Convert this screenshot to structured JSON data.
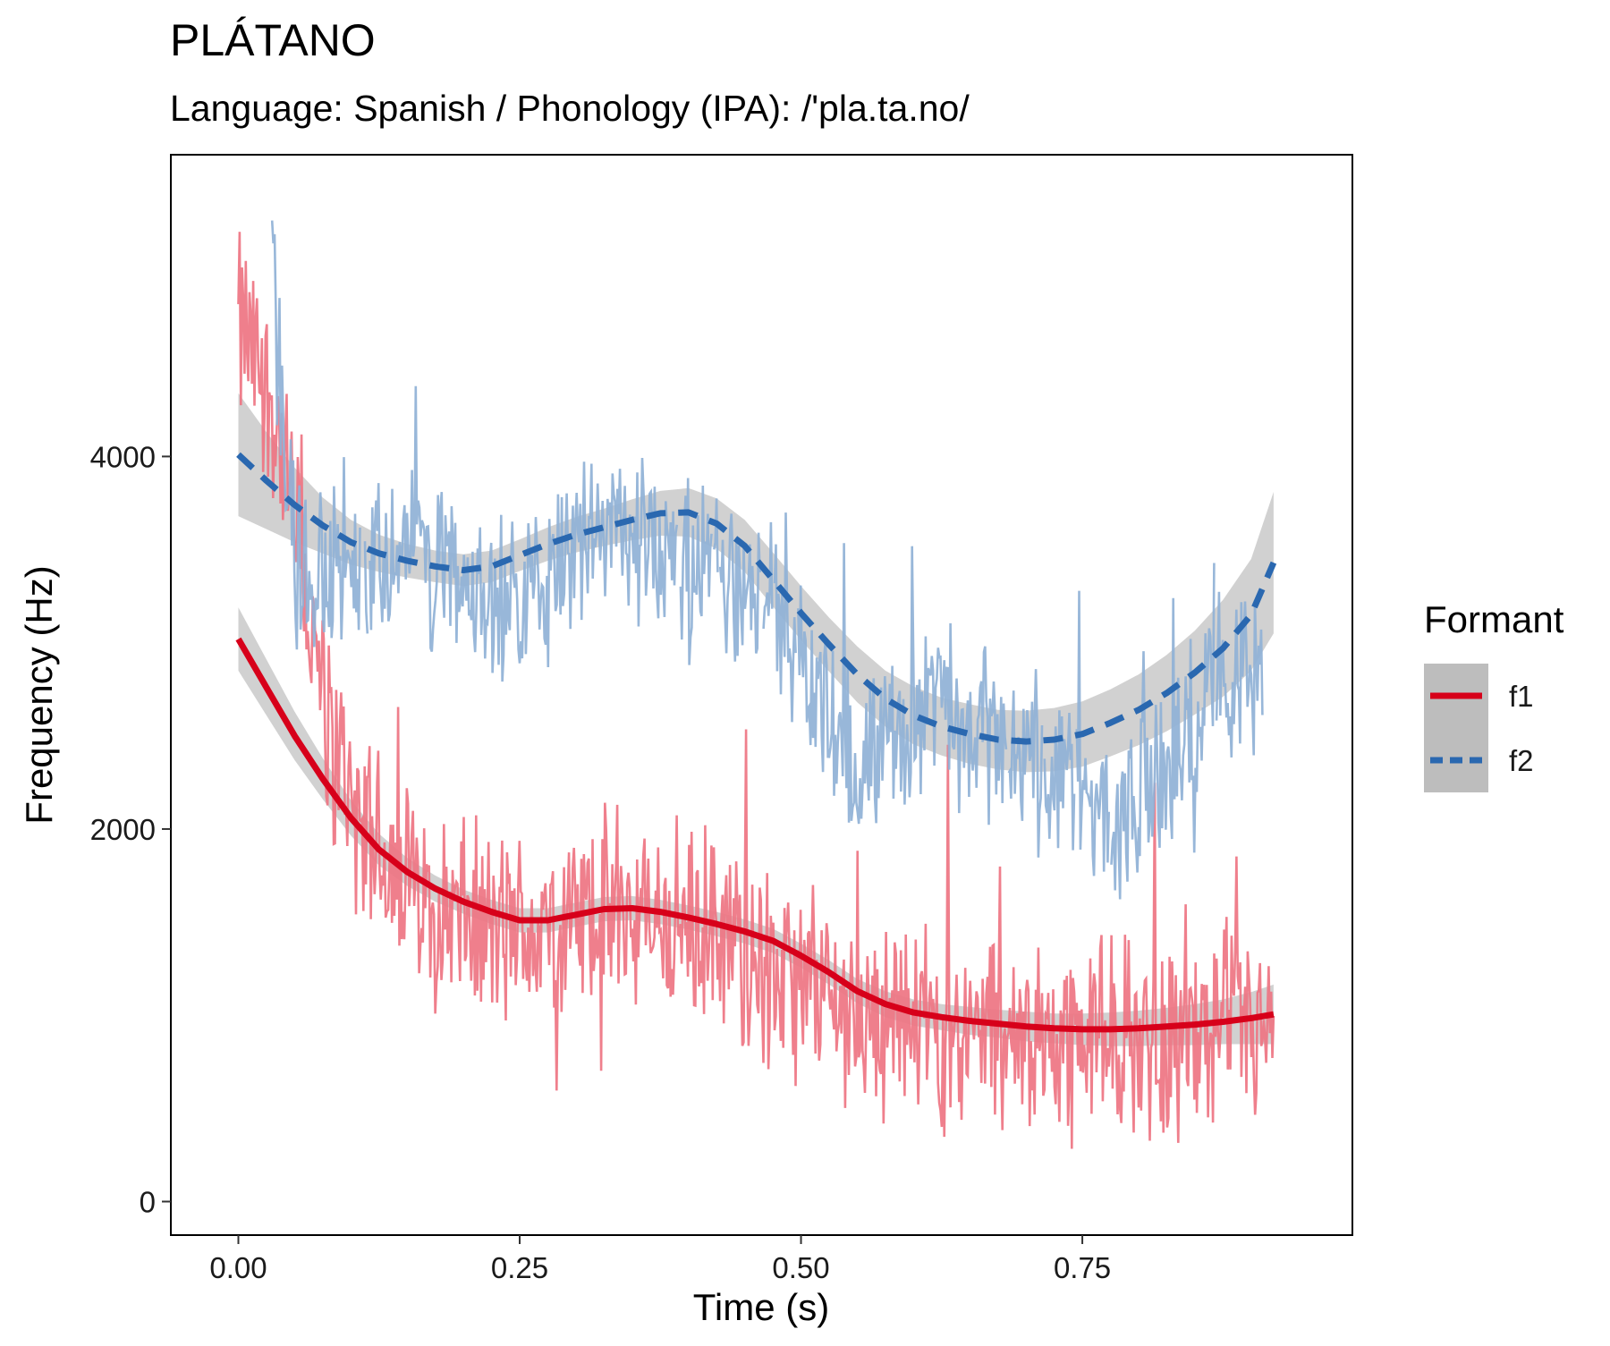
{
  "chart_data": {
    "type": "line",
    "title": "PLÁTANO",
    "subtitle": "Language: Spanish / Phonology (IPA): /'pla.ta.no/",
    "xlabel": "Time (s)",
    "ylabel": "Frequency (Hz)",
    "xlim": [
      -0.06,
      0.99
    ],
    "ylim": [
      -180,
      5620
    ],
    "x_ticks": [
      0.0,
      0.25,
      0.5,
      0.75
    ],
    "x_tick_labels": [
      "0.00",
      "0.25",
      "0.50",
      "0.75"
    ],
    "y_ticks": [
      0,
      2000,
      4000
    ],
    "y_tick_labels": [
      "0",
      "2000",
      "4000"
    ],
    "grid": false,
    "legend": {
      "title": "Formant",
      "placement": "right",
      "entries": [
        {
          "label": "f1",
          "color": "#d7001a",
          "dash": "solid"
        },
        {
          "label": "f2",
          "color": "#2a68b0",
          "dash": "dashed"
        }
      ]
    },
    "raw_colors": {
      "f1": "#ee7482",
      "f2": "#8fb1d6"
    },
    "ribbon_color": "#bdbdbd",
    "raw_series": [
      {
        "name": "f1",
        "anchors_x": [
          0.0,
          0.03,
          0.05,
          0.08,
          0.12,
          0.17,
          0.22,
          0.26,
          0.33,
          0.38,
          0.44,
          0.48,
          0.56,
          0.63,
          0.7,
          0.78,
          0.85,
          0.92
        ],
        "anchors_y": [
          4700,
          4300,
          3600,
          2500,
          1900,
          1600,
          1450,
          1450,
          1550,
          1500,
          1400,
          1200,
          1000,
          920,
          900,
          880,
          880,
          900
        ],
        "noise_amplitude": 650
      },
      {
        "name": "f2",
        "anchors_x": [
          0.03,
          0.05,
          0.07,
          0.1,
          0.15,
          0.2,
          0.25,
          0.3,
          0.35,
          0.4,
          0.45,
          0.48,
          0.55,
          0.62,
          0.7,
          0.78,
          0.86,
          0.91
        ],
        "anchors_y": [
          5000,
          3400,
          3300,
          3400,
          3500,
          3300,
          3200,
          3500,
          3650,
          3500,
          3300,
          3200,
          2300,
          2700,
          2400,
          2000,
          2700,
          2800
        ],
        "noise_amplitude": 550
      }
    ],
    "smooth_series": [
      {
        "name": "f1",
        "x": [
          0.0,
          0.025,
          0.05,
          0.075,
          0.1,
          0.125,
          0.15,
          0.175,
          0.2,
          0.225,
          0.25,
          0.275,
          0.3,
          0.325,
          0.35,
          0.375,
          0.4,
          0.425,
          0.45,
          0.475,
          0.5,
          0.525,
          0.55,
          0.575,
          0.6,
          0.625,
          0.65,
          0.675,
          0.7,
          0.725,
          0.75,
          0.775,
          0.8,
          0.825,
          0.85,
          0.875,
          0.9,
          0.92
        ],
        "y": [
          3020,
          2760,
          2500,
          2270,
          2060,
          1890,
          1770,
          1680,
          1610,
          1555,
          1510,
          1510,
          1540,
          1570,
          1575,
          1555,
          1525,
          1490,
          1450,
          1400,
          1320,
          1230,
          1130,
          1060,
          1015,
          990,
          970,
          955,
          940,
          930,
          925,
          925,
          930,
          940,
          950,
          965,
          985,
          1005
        ],
        "se": [
          170,
          150,
          130,
          110,
          95,
          85,
          75,
          70,
          65,
          65,
          65,
          65,
          65,
          65,
          65,
          65,
          65,
          65,
          65,
          65,
          65,
          65,
          65,
          70,
          70,
          70,
          75,
          75,
          80,
          80,
          85,
          90,
          95,
          100,
          110,
          120,
          140,
          160
        ]
      },
      {
        "name": "f2",
        "x": [
          0.0,
          0.025,
          0.05,
          0.075,
          0.1,
          0.125,
          0.15,
          0.175,
          0.2,
          0.225,
          0.25,
          0.275,
          0.3,
          0.325,
          0.35,
          0.375,
          0.4,
          0.425,
          0.45,
          0.475,
          0.5,
          0.525,
          0.55,
          0.575,
          0.6,
          0.625,
          0.65,
          0.675,
          0.7,
          0.725,
          0.75,
          0.775,
          0.8,
          0.825,
          0.85,
          0.875,
          0.9,
          0.92
        ],
        "y": [
          4010,
          3870,
          3740,
          3630,
          3540,
          3480,
          3440,
          3410,
          3390,
          3410,
          3470,
          3530,
          3580,
          3620,
          3660,
          3695,
          3700,
          3640,
          3520,
          3340,
          3160,
          2990,
          2830,
          2700,
          2610,
          2550,
          2510,
          2480,
          2470,
          2480,
          2510,
          2570,
          2640,
          2730,
          2840,
          2970,
          3150,
          3430
        ],
        "se": [
          330,
          260,
          200,
          150,
          120,
          100,
          90,
          85,
          85,
          85,
          85,
          90,
          95,
          100,
          110,
          120,
          130,
          135,
          140,
          145,
          145,
          145,
          150,
          150,
          155,
          155,
          160,
          160,
          165,
          170,
          175,
          180,
          190,
          205,
          225,
          260,
          300,
          380
        ]
      }
    ]
  }
}
